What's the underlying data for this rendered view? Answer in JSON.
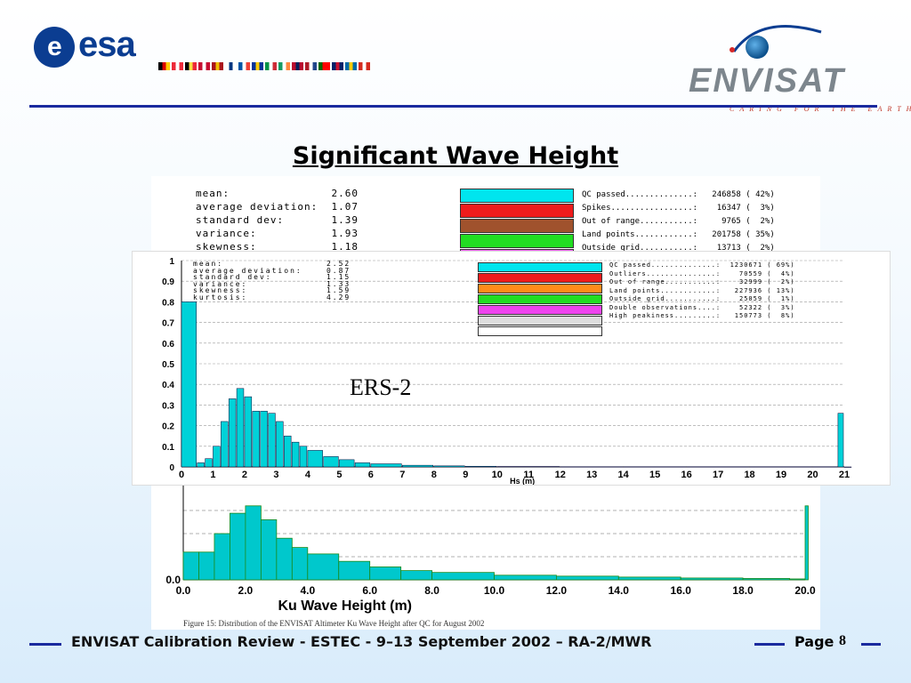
{
  "header": {
    "esa_logo_text": "esa",
    "envisat_name": "ENVISAT",
    "envisat_tagline": "CARING FOR THE EARTH",
    "flag_colors": [
      [
        "#000",
        "#d00",
        "#fc0"
      ],
      [
        "#ed2939",
        "#fff",
        "#ed2939"
      ],
      [
        "#000",
        "#fae042",
        "#ed2939"
      ],
      [
        "#c60c30",
        "#fff",
        "#c60c30"
      ],
      [
        "#aa151b",
        "#f1bf00",
        "#aa151b"
      ],
      [
        "#fff",
        "#003580",
        "#fff"
      ],
      [
        "#0055a4",
        "#fff",
        "#ef4135"
      ],
      [
        "#003399",
        "#ffcc00",
        "#003399"
      ],
      [
        "#009246",
        "#fff",
        "#ce2b37"
      ],
      [
        "#169b62",
        "#fff",
        "#ff883e"
      ],
      [
        "#ba0c2f",
        "#00205b",
        "#ba0c2f"
      ],
      [
        "#ae1c28",
        "#fff",
        "#21468b"
      ],
      [
        "#006600",
        "#ff0000",
        "#ff0000"
      ],
      [
        "#012169",
        "#c8102e",
        "#012169"
      ],
      [
        "#006aa7",
        "#fecc00",
        "#006aa7"
      ],
      [
        "#d52b1e",
        "#fff",
        "#d52b1e"
      ]
    ]
  },
  "title": "Significant Wave Height",
  "envisat_figure": {
    "stats": [
      {
        "name": "mean:",
        "value": "2.60"
      },
      {
        "name": "average deviation:",
        "value": "1.07"
      },
      {
        "name": "standard dev:",
        "value": "1.39"
      },
      {
        "name": "variance:",
        "value": "1.93"
      },
      {
        "name": "skewness:",
        "value": "1.18"
      }
    ],
    "legend": [
      {
        "label": "QC passed..............:",
        "count": "246858",
        "pct": "( 42%)",
        "color": "#00e5ee"
      },
      {
        "label": "Spikes.................:",
        "count": "16347",
        "pct": "(  3%)",
        "color": "#ee1c1c"
      },
      {
        "label": "Out of range...........:",
        "count": "9765",
        "pct": "(  2%)",
        "color": "#a0522d"
      },
      {
        "label": "Land points............:",
        "count": "201758",
        "pct": "( 35%)",
        "color": "#22dd22"
      },
      {
        "label": "Outside grid...........:",
        "count": "13713",
        "pct": "(  2%)",
        "color": "#ee66ee"
      }
    ],
    "caption": "Figure 15: Distribution of the ENVISAT Altimeter Ku Wave Height after QC for August 2002"
  },
  "ers_figure": {
    "label": "ERS-2",
    "stats": [
      {
        "name": "mean:",
        "value": "2.52"
      },
      {
        "name": "average deviation:",
        "value": "0.87"
      },
      {
        "name": "standard dev:",
        "value": "1.15"
      },
      {
        "name": "variance:",
        "value": "1.33"
      },
      {
        "name": "skewness:",
        "value": "1.59"
      },
      {
        "name": "kurtosis:",
        "value": "4.29"
      }
    ],
    "legend": [
      {
        "label": "QC passed..............:",
        "count": "1230671",
        "pct": "( 69%)",
        "color": "#00e5ee"
      },
      {
        "label": "Outliers...............:",
        "count": "70559",
        "pct": "(  4%)",
        "color": "#ee1c1c"
      },
      {
        "label": "Out of range...........:",
        "count": "32999",
        "pct": "(  2%)",
        "color": "#ff8c1a"
      },
      {
        "label": "Land points............:",
        "count": "227936",
        "pct": "( 13%)",
        "color": "#22dd22"
      },
      {
        "label": "Outside grid...........:",
        "count": "25059",
        "pct": "(  1%)",
        "color": "#ee44ee"
      },
      {
        "label": "Double observations....:",
        "count": "52322",
        "pct": "(  3%)",
        "color": "#dddddd"
      },
      {
        "label": "High peakiness.........:",
        "count": "150773",
        "pct": "(  8%)",
        "color": "#ffffff"
      }
    ]
  },
  "chart_data": [
    {
      "type": "bar",
      "title": "ERS-2",
      "xlabel": "Hs (m)",
      "ylabel": "",
      "xlim": [
        0,
        21
      ],
      "ylim": [
        0,
        1
      ],
      "x_ticks": [
        "0",
        "1",
        "2",
        "3",
        "4",
        "5",
        "6",
        "7",
        "8",
        "9",
        "10",
        "11",
        "12",
        "13",
        "14",
        "15",
        "16",
        "17",
        "18",
        "19",
        "20",
        "21"
      ],
      "y_ticks": [
        "0",
        "0.1",
        "0.2",
        "0.3",
        "0.4",
        "0.5",
        "0.6",
        "0.7",
        "0.8",
        "0.9",
        "1"
      ],
      "x": [
        0,
        0.5,
        0.75,
        1.0,
        1.25,
        1.5,
        1.75,
        2.0,
        2.25,
        2.5,
        2.75,
        3.0,
        3.25,
        3.5,
        3.75,
        4.0,
        4.5,
        5.0,
        5.5,
        6.0,
        7.0,
        8.0,
        9.0,
        10.0,
        12.0,
        14.0,
        16.0,
        18.0,
        20.0,
        20.8,
        21.0
      ],
      "series": [
        {
          "values": [
            0.8,
            0.02,
            0.04,
            0.1,
            0.22,
            0.33,
            0.38,
            0.34,
            0.27,
            0.27,
            0.26,
            0.22,
            0.15,
            0.12,
            0.1,
            0.08,
            0.05,
            0.035,
            0.02,
            0.015,
            0.008,
            0.005,
            0.003,
            0.002,
            0.001,
            0.001,
            0.001,
            0.001,
            0.001,
            0.26,
            0.0
          ]
        }
      ]
    },
    {
      "type": "bar",
      "title": "",
      "xlabel": "Ku Wave Height       (m)",
      "ylabel": "",
      "xlim": [
        0,
        20
      ],
      "x_ticks": [
        "0.0",
        "2.0",
        "4.0",
        "6.0",
        "8.0",
        "10.0",
        "12.0",
        "14.0",
        "16.0",
        "18.0",
        "20.0"
      ],
      "y_ticks": [
        "0.0"
      ],
      "x": [
        0,
        0.5,
        1.0,
        1.5,
        2.0,
        2.5,
        3.0,
        3.5,
        4.0,
        5.0,
        6.0,
        7.0,
        8.0,
        10.0,
        12.0,
        14.0,
        16.0,
        18.0,
        19.5,
        20.0
      ],
      "series": [
        {
          "values": [
            0.3,
            0.3,
            0.5,
            0.72,
            0.8,
            0.65,
            0.45,
            0.35,
            0.28,
            0.2,
            0.14,
            0.1,
            0.08,
            0.05,
            0.04,
            0.03,
            0.02,
            0.015,
            0.01,
            0.8
          ]
        }
      ]
    }
  ],
  "footer": {
    "text": "ENVISAT Calibration Review - ESTEC - 9–13 September 2002 – RA-2/MWR",
    "page_label": "Page",
    "page_number": "8"
  }
}
